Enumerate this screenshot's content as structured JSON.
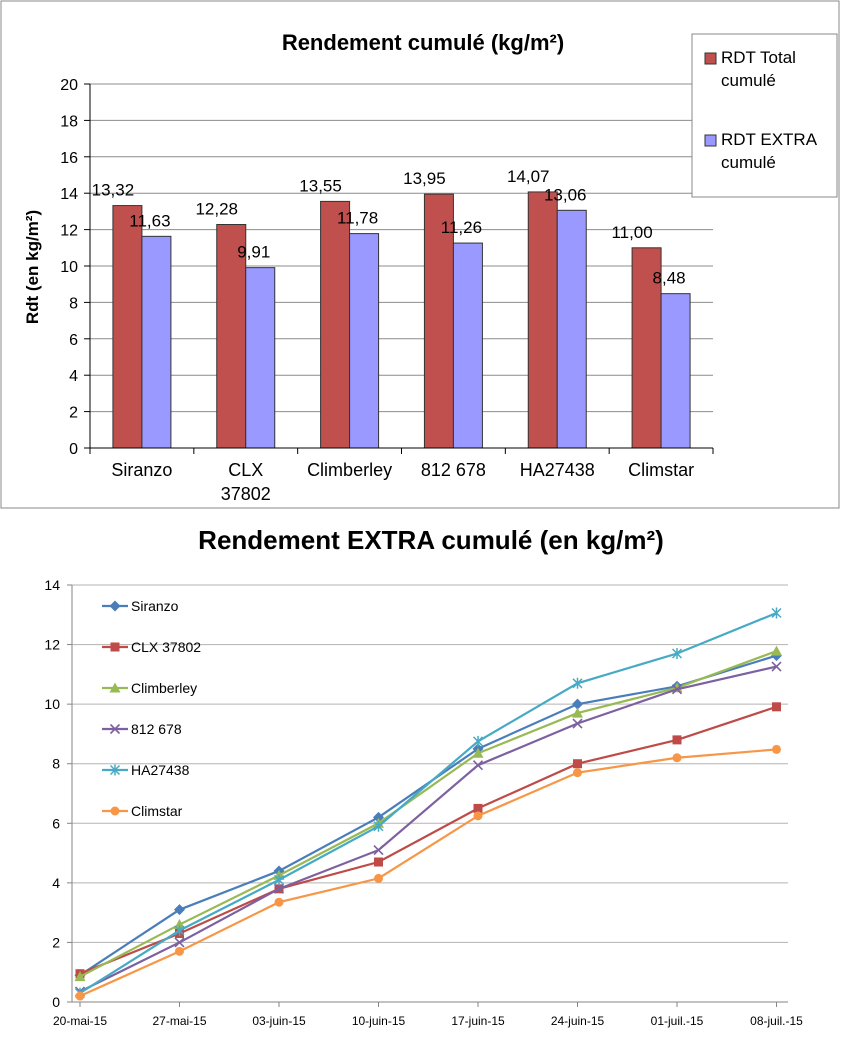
{
  "chart_data": [
    {
      "type": "bar",
      "title": "Rendement cumulé (kg/m²)",
      "ylabel": "Rdt  (en kg/m²)",
      "xlabel": "",
      "ylim": [
        0,
        20
      ],
      "yticks": [
        "0",
        "2",
        "4",
        "6",
        "8",
        "10",
        "12",
        "14",
        "16",
        "18",
        "20"
      ],
      "categories": [
        [
          "Siranzo"
        ],
        [
          "CLX",
          "37802"
        ],
        [
          "Climberley"
        ],
        [
          "812 678"
        ],
        [
          "HA27438"
        ],
        [
          "Climstar"
        ]
      ],
      "series": [
        {
          "name": "RDT Total cumulé",
          "legend_lines": [
            "RDT Total",
            "cumulé"
          ],
          "color": "#c0504d",
          "values": [
            13.32,
            12.28,
            13.55,
            13.95,
            14.07,
            11.0
          ],
          "labels": [
            "13,32",
            "12,28",
            "13,55",
            "13,95",
            "14,07",
            "11,00"
          ]
        },
        {
          "name": "RDT EXTRA cumulé",
          "legend_lines": [
            "RDT EXTRA",
            "cumulé"
          ],
          "color": "#9999ff",
          "values": [
            11.63,
            9.91,
            11.78,
            11.26,
            13.06,
            8.48
          ],
          "labels": [
            "11,63",
            "9,91",
            "11,78",
            "11,26",
            "13,06",
            "8,48"
          ]
        }
      ],
      "grid": true,
      "legend": "top-right"
    },
    {
      "type": "line",
      "title": "Rendement EXTRA cumulé (en kg/m²)",
      "xlabel": "",
      "ylabel": "",
      "ylim": [
        0,
        14
      ],
      "yticks": [
        "0",
        "2",
        "4",
        "6",
        "8",
        "10",
        "12",
        "14"
      ],
      "categories": [
        "20-mai-15",
        "27-mai-15",
        "03-juin-15",
        "10-juin-15",
        "17-juin-15",
        "24-juin-15",
        "01-juil.-15",
        "08-juil.-15"
      ],
      "series": [
        {
          "name": "Siranzo",
          "color": "#4a7ebb",
          "marker": "diamond",
          "values": [
            0.9,
            3.1,
            4.4,
            6.2,
            8.5,
            10.0,
            10.6,
            11.63
          ]
        },
        {
          "name": "CLX 37802",
          "color": "#be4b48",
          "marker": "square",
          "values": [
            0.95,
            2.3,
            3.8,
            4.7,
            6.5,
            8.0,
            8.8,
            9.91
          ]
        },
        {
          "name": "Climberley",
          "color": "#98b954",
          "marker": "triangle",
          "values": [
            0.85,
            2.6,
            4.25,
            6.0,
            8.35,
            9.7,
            10.55,
            11.78
          ]
        },
        {
          "name": "812 678",
          "color": "#7d60a0",
          "marker": "x",
          "values": [
            0.35,
            2.0,
            3.8,
            5.1,
            7.95,
            9.35,
            10.5,
            11.26
          ]
        },
        {
          "name": "HA27438",
          "color": "#46aac5",
          "marker": "star",
          "values": [
            0.3,
            2.4,
            4.1,
            5.9,
            8.75,
            10.7,
            11.7,
            13.06
          ]
        },
        {
          "name": "Climstar",
          "color": "#f79646",
          "marker": "circle",
          "values": [
            0.2,
            1.7,
            3.35,
            4.15,
            6.25,
            7.7,
            8.2,
            8.48
          ]
        }
      ],
      "grid": true,
      "legend": "top-left"
    }
  ]
}
